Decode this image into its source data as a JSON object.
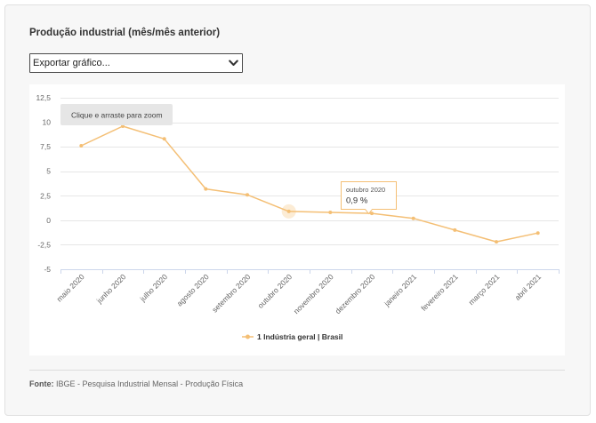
{
  "export_menu": {
    "selected_label": "Exportar gráfico...",
    "icon": "chevron-down-icon"
  },
  "chart_data": {
    "type": "line",
    "title": "Produção industrial (mês/mês anterior)",
    "categories": [
      "maio 2020",
      "junho 2020",
      "julho 2020",
      "agosto 2020",
      "setembro 2020",
      "outubro 2020",
      "novembro 2020",
      "dezembro 2020",
      "janeiro 2021",
      "fevereiro 2021",
      "março 2021",
      "abril 2021"
    ],
    "series": [
      {
        "name": "1 Indústria geral | Brasil",
        "values": [
          7.6,
          9.6,
          8.3,
          3.2,
          2.6,
          0.9,
          0.8,
          0.7,
          0.2,
          -1.0,
          -2.2,
          -1.3
        ],
        "color": "#f4bf75"
      }
    ],
    "ylim": [
      -5,
      12.5
    ],
    "yticks": [
      -5,
      -2.5,
      0,
      2.5,
      5,
      7.5,
      10,
      12.5
    ],
    "ytick_labels": [
      "-5",
      "-2,5",
      "0",
      "2,5",
      "5",
      "7,5",
      "10",
      "12,5"
    ],
    "grid": true,
    "legend": "bottom",
    "zoom_hint": "Clique e arraste para zoom",
    "tooltip": {
      "hover_index": 5,
      "category": "outubro 2020",
      "value": "0,9 %"
    }
  },
  "source": {
    "label": "Fonte:",
    "text": "IBGE - Pesquisa Industrial Mensal - Produção Física"
  }
}
